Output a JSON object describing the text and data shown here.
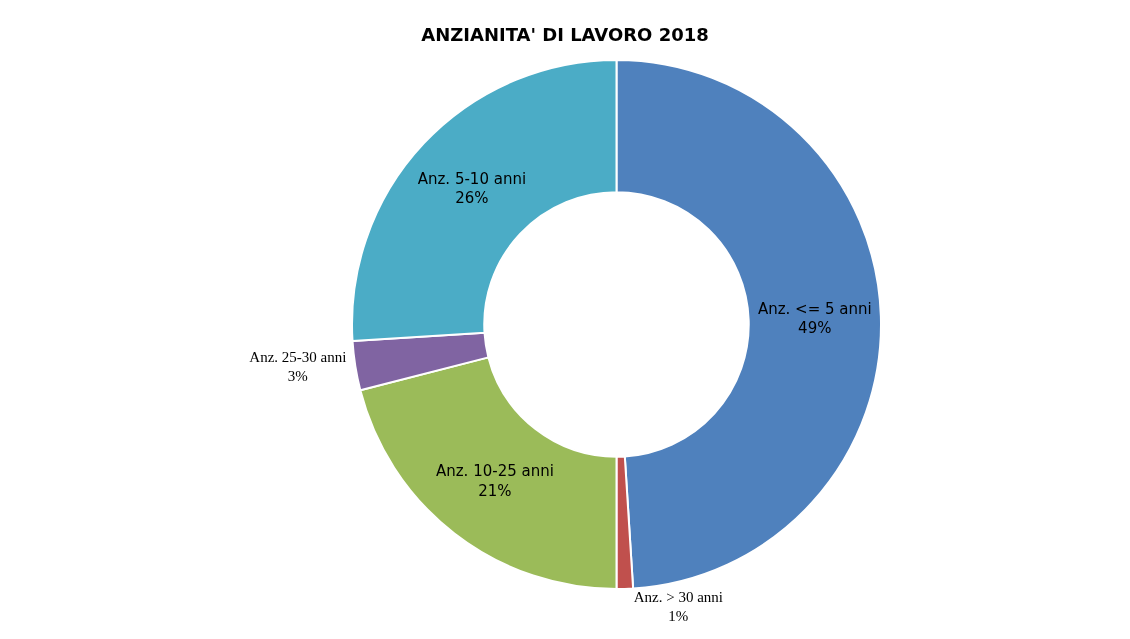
{
  "chart_data": {
    "type": "donut",
    "title": "ANZIANITA' DI LAVORO 2018",
    "categories": [
      "Anz. <= 5 anni",
      "Anz. > 30 anni",
      "Anz. 10-25 anni",
      "Anz. 25-30 anni",
      "Anz. 5-10 anni"
    ],
    "values": [
      49,
      1,
      21,
      3,
      26
    ],
    "value_labels": [
      "49%",
      "1%",
      "21%",
      "3%",
      "26%"
    ],
    "colors": [
      "#4f81bd",
      "#c0504d",
      "#9bbb59",
      "#8064a2",
      "#4bacc6"
    ]
  }
}
